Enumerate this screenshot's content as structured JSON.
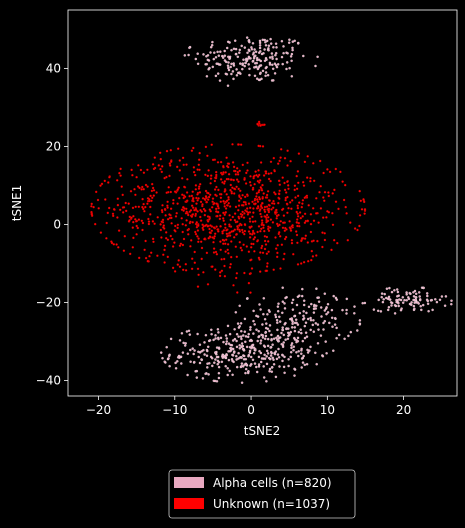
{
  "chart_data": {
    "type": "scatter",
    "title": "",
    "xlabel": "tSNE2",
    "ylabel": "tSNE1",
    "xlim": [
      -24,
      27
    ],
    "ylim": [
      -44,
      55
    ],
    "xticks": [
      -20,
      -10,
      0,
      10,
      20
    ],
    "yticks": [
      -40,
      -20,
      0,
      20,
      40
    ],
    "grid": false,
    "legend_position": "bottom-center",
    "background": "#000000",
    "series": [
      {
        "name": "Alpha cells (n=820)",
        "count": 820,
        "color": "#e8a8c0",
        "edge_color": "#ffffff",
        "clusters": [
          {
            "cx": 0.0,
            "cy": 42.5,
            "sx": 3.8,
            "sy": 3.2,
            "n": 210
          },
          {
            "cx": -1.2,
            "cy": -33.0,
            "sx": 4.6,
            "sy": 3.3,
            "n": 330
          },
          {
            "cx": 6.0,
            "cy": -25.0,
            "sx": 3.6,
            "sy": 4.2,
            "n": 180
          },
          {
            "cx": 20.5,
            "cy": -19.5,
            "sx": 2.6,
            "sy": 1.5,
            "n": 100
          }
        ]
      },
      {
        "name": "Unknown (n=1037)",
        "count": 1037,
        "color": "#ff0000",
        "edge_color": "#7a0000",
        "clusters": [
          {
            "cx": -3.0,
            "cy": 4.0,
            "sx": 7.8,
            "sy": 7.2,
            "n": 1010
          },
          {
            "cx": 1.2,
            "cy": 25.7,
            "sx": 0.35,
            "sy": 0.45,
            "n": 12
          },
          {
            "cx": -2.0,
            "cy": -14.0,
            "sx": 4.0,
            "sy": 3.0,
            "n": 15
          }
        ]
      }
    ]
  }
}
